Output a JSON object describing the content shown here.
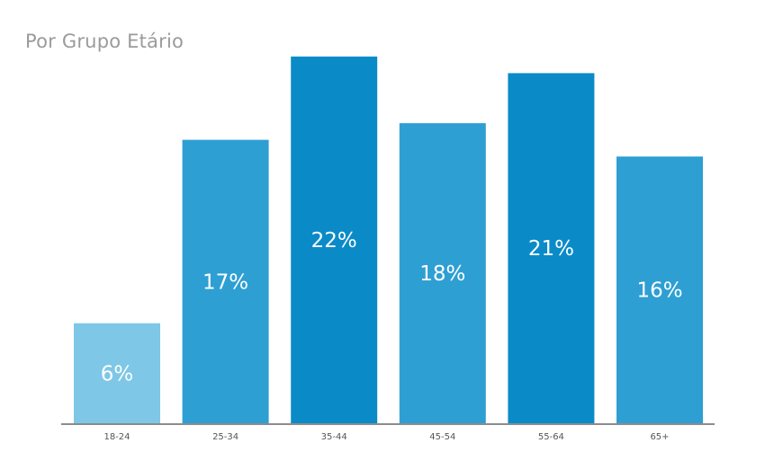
{
  "chart_data": {
    "type": "bar",
    "title": "Por Grupo Etário",
    "xlabel": "",
    "ylabel": "",
    "categories": [
      "18-24",
      "25-34",
      "35-44",
      "45-54",
      "55-64",
      "65+"
    ],
    "values": [
      6,
      17,
      22,
      18,
      21,
      16
    ],
    "value_labels": [
      "6%",
      "17%",
      "22%",
      "18%",
      "21%",
      "16%"
    ],
    "bar_colors": [
      "#7ec7e6",
      "#2e9fd3",
      "#0a8bc8",
      "#2e9fd3",
      "#0a8bc8",
      "#2e9fd3"
    ],
    "label_color": "#ffffff",
    "grid": false,
    "legend": "none"
  }
}
